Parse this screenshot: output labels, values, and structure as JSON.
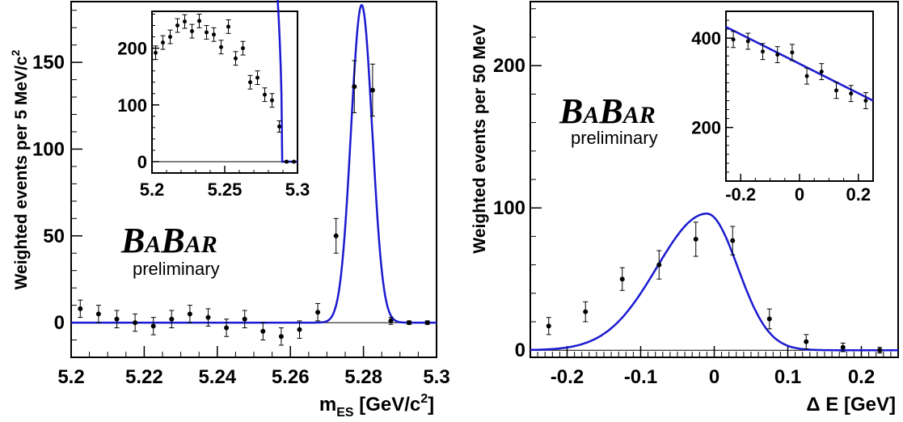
{
  "chart_data": [
    {
      "type": "scatter",
      "ylabel_main": "Weighted events per 5 MeV/c",
      "ylabel_sup": "2",
      "xlabel_main": "m",
      "xlabel_sub": "ES",
      "xlabel_unit": " [GeV/c",
      "xlabel_unit_sup": "2",
      "xlabel_close": "]",
      "logo_b1": "B",
      "logo_a1": "A",
      "logo_b2": "B",
      "logo_ar": "AR",
      "preliminary": "preliminary",
      "xlim": [
        5.2,
        5.3
      ],
      "ylim": [
        -20,
        185
      ],
      "x_ticks": [
        "5.2",
        "5.22",
        "5.24",
        "5.26",
        "5.28",
        "5.3"
      ],
      "y_ticks": [
        "0",
        "50",
        "100",
        "150"
      ],
      "series": [
        {
          "x": [
            5.2025,
            5.2075,
            5.2125,
            5.2175,
            5.2225,
            5.2275,
            5.2325,
            5.2375,
            5.2425,
            5.2475,
            5.2525,
            5.2575,
            5.2625,
            5.2675,
            5.2725,
            5.2775,
            5.2825,
            5.2875,
            5.2925,
            5.2975
          ],
          "y": [
            8,
            5,
            2,
            0,
            -2,
            2,
            5,
            3,
            -3,
            2,
            -5,
            -8,
            -4,
            6,
            50,
            136,
            134,
            1,
            0,
            0
          ],
          "err": [
            5,
            5,
            5,
            5,
            5,
            5,
            5,
            5,
            5,
            5,
            5,
            5,
            5,
            5,
            10,
            15,
            15,
            2,
            1,
            1
          ]
        }
      ],
      "fit": {
        "color": "#1a1ad0",
        "peak_x": 5.2795,
        "amplitude": 183,
        "sigma": 0.0029
      },
      "inset": {
        "xlim": [
          5.2,
          5.3
        ],
        "ylim": [
          -20,
          265
        ],
        "x_ticks": [
          "5.2",
          "5.25",
          "5.3"
        ],
        "y_ticks": [
          "0",
          "100",
          "200"
        ],
        "x": [
          5.2025,
          5.2075,
          5.2125,
          5.2175,
          5.2225,
          5.2275,
          5.2325,
          5.2375,
          5.2425,
          5.2475,
          5.2525,
          5.2575,
          5.2625,
          5.2675,
          5.2725,
          5.2775,
          5.2825,
          5.2875,
          5.2925,
          5.2975
        ],
        "y": [
          192,
          210,
          220,
          240,
          247,
          230,
          248,
          228,
          224,
          202,
          238,
          182,
          200,
          140,
          148,
          118,
          108,
          62,
          0,
          0
        ],
        "err": [
          12,
          12,
          12,
          12,
          12,
          12,
          12,
          12,
          12,
          12,
          12,
          12,
          12,
          12,
          12,
          12,
          12,
          10,
          1,
          1
        ]
      }
    },
    {
      "type": "scatter",
      "ylabel_main": "Weighted events per 50 MeV",
      "xlabel_main": "Δ E [GeV]",
      "logo_b1": "B",
      "logo_a1": "A",
      "logo_b2": "B",
      "logo_ar": "AR",
      "preliminary": "preliminary",
      "xlim": [
        -0.25,
        0.25
      ],
      "ylim": [
        -5,
        245
      ],
      "x_ticks": [
        "-0.2",
        "-0.1",
        "0",
        "0.1",
        "0.2"
      ],
      "y_ticks": [
        "0",
        "100",
        "200"
      ],
      "series": [
        {
          "x": [
            -0.225,
            -0.175,
            -0.125,
            -0.075,
            -0.025,
            0.025,
            0.075,
            0.125,
            0.175,
            0.225
          ],
          "y": [
            17,
            27,
            50,
            60,
            78,
            77,
            22,
            6,
            2,
            0
          ],
          "err": [
            6,
            7,
            8,
            10,
            12,
            10,
            7,
            5,
            3,
            2
          ]
        }
      ],
      "fit": {
        "color": "#1a1ad0",
        "peak_x": -0.01,
        "amplitude": 96,
        "sigma": 0.05
      },
      "inset": {
        "xlim": [
          -0.25,
          0.25
        ],
        "ylim": [
          80,
          460
        ],
        "x_ticks": [
          "-0.2",
          "0",
          "0.2"
        ],
        "y_ticks": [
          "200",
          "400"
        ],
        "x": [
          -0.225,
          -0.175,
          -0.125,
          -0.075,
          -0.025,
          0.025,
          0.075,
          0.125,
          0.175,
          0.225
        ],
        "y": [
          397,
          393,
          370,
          363,
          368,
          315,
          325,
          283,
          276,
          260
        ],
        "err": [
          18,
          18,
          18,
          18,
          18,
          18,
          18,
          18,
          18,
          18
        ],
        "line": [
          [
            -0.25,
            425
          ],
          [
            0.25,
            260
          ]
        ]
      }
    }
  ]
}
